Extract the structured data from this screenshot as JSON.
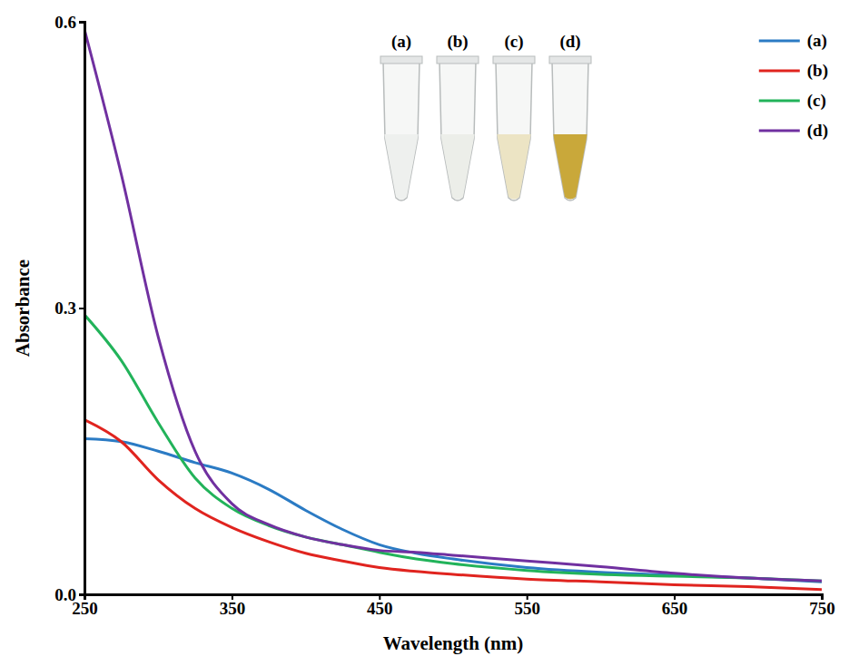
{
  "chart_data": {
    "type": "line",
    "x_label": "Wavelength (nm)",
    "y_label": "Absorbance",
    "x": [
      250,
      275,
      300,
      325,
      350,
      375,
      400,
      425,
      450,
      475,
      500,
      550,
      600,
      650,
      700,
      750
    ],
    "series": [
      {
        "name": "(a)",
        "color": "#2b7bc4",
        "values": [
          0.163,
          0.16,
          0.15,
          0.138,
          0.127,
          0.11,
          0.088,
          0.068,
          0.052,
          0.043,
          0.037,
          0.028,
          0.023,
          0.02,
          0.017,
          0.013
        ]
      },
      {
        "name": "(b)",
        "color": "#e0241f",
        "values": [
          0.183,
          0.16,
          0.12,
          0.09,
          0.07,
          0.055,
          0.043,
          0.035,
          0.028,
          0.024,
          0.021,
          0.016,
          0.013,
          0.01,
          0.008,
          0.005
        ]
      },
      {
        "name": "(c)",
        "color": "#22b35a",
        "values": [
          0.293,
          0.245,
          0.18,
          0.122,
          0.09,
          0.072,
          0.06,
          0.052,
          0.044,
          0.037,
          0.032,
          0.025,
          0.021,
          0.019,
          0.017,
          0.014
        ]
      },
      {
        "name": "(d)",
        "color": "#7030a0",
        "values": [
          0.592,
          0.44,
          0.27,
          0.15,
          0.095,
          0.073,
          0.06,
          0.052,
          0.046,
          0.044,
          0.041,
          0.035,
          0.029,
          0.022,
          0.017,
          0.014
        ]
      }
    ],
    "annotations": [
      "(a)",
      "(b)",
      "(c)",
      "(d)"
    ],
    "xlim": [
      250,
      750
    ],
    "xticks": [
      250,
      350,
      450,
      550,
      650,
      750
    ],
    "ylim": [
      0,
      0.6
    ],
    "yticks": [
      {
        "value": 0,
        "label": "0.0"
      },
      0.3,
      0.6
    ],
    "legend": "upper right",
    "grid": false
  }
}
